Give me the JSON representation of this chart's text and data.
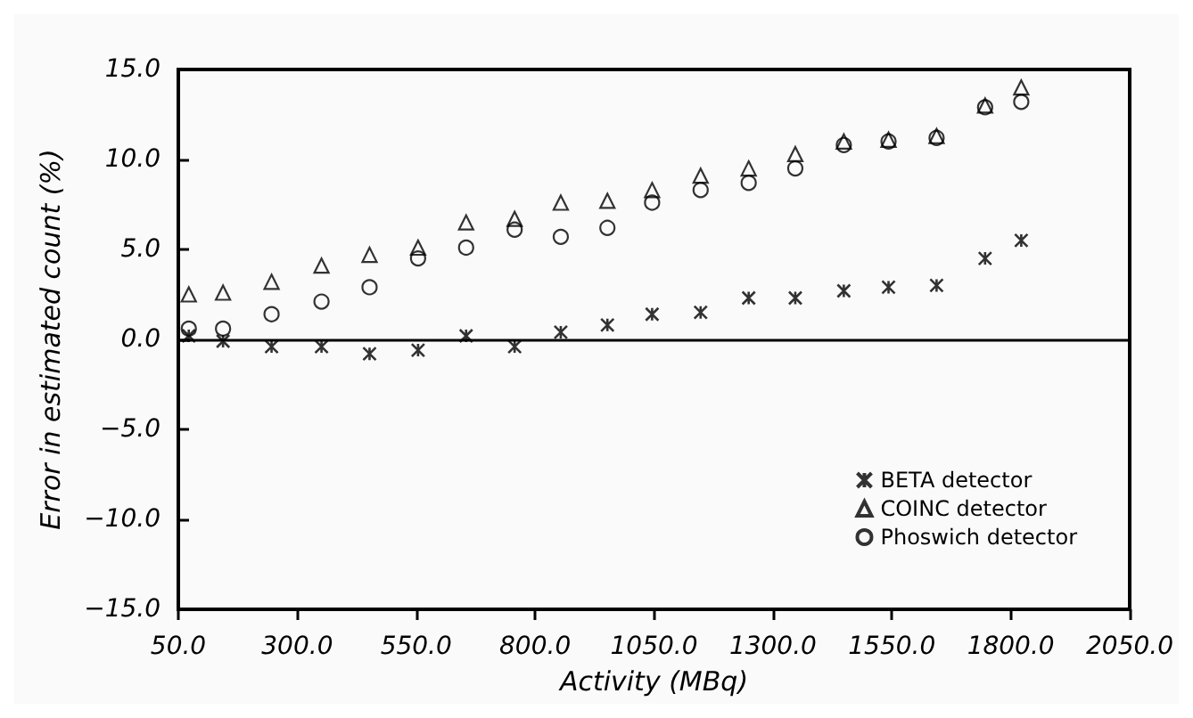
{
  "chart_data": {
    "type": "scatter",
    "xlabel": "Activity (MBq)",
    "ylabel": "Error in estimated count (%)",
    "x": [
      72,
      144,
      246,
      351,
      452,
      554,
      655,
      757,
      854,
      952,
      1046,
      1148,
      1249,
      1347,
      1449,
      1543,
      1644,
      1746,
      1822
    ],
    "series": [
      {
        "name": "BETA detector",
        "color": "#000000",
        "marker": "cross",
        "values": [
          0.2,
          -0.1,
          -0.4,
          -0.4,
          -0.8,
          -0.6,
          0.2,
          -0.4,
          0.4,
          0.8,
          1.4,
          1.5,
          2.3,
          2.3,
          2.7,
          2.9,
          3.0,
          4.5,
          5.5
        ]
      },
      {
        "name": "COINC detector",
        "color": "#000000",
        "marker": "triangle",
        "values": [
          2.5,
          2.6,
          3.2,
          4.1,
          4.7,
          5.1,
          6.5,
          6.7,
          7.6,
          7.7,
          8.3,
          9.1,
          9.5,
          10.3,
          11.0,
          11.1,
          11.3,
          13.0,
          14.0
        ]
      },
      {
        "name": "Phoswich detector",
        "color": "#000000",
        "marker": "circle",
        "values": [
          0.6,
          0.6,
          1.4,
          2.1,
          2.9,
          4.5,
          5.1,
          6.1,
          5.7,
          6.2,
          7.6,
          8.3,
          8.7,
          9.5,
          10.8,
          11.0,
          11.2,
          12.9,
          13.2
        ]
      }
    ],
    "xlim": [
      50,
      2050
    ],
    "xticks": [
      {
        "value": 50,
        "label": "50.0"
      },
      {
        "value": 300,
        "label": "300.0"
      },
      {
        "value": 550,
        "label": "550.0"
      },
      {
        "value": 800,
        "label": "800.0"
      },
      {
        "value": 1050,
        "label": "1050.0"
      },
      {
        "value": 1300,
        "label": "1300.0"
      },
      {
        "value": 1550,
        "label": "1550.0"
      },
      {
        "value": 1800,
        "label": "1800.0"
      },
      {
        "value": 2050,
        "label": "2050.0"
      }
    ],
    "ylim": [
      -15,
      15
    ],
    "yticks": [
      {
        "value": -15,
        "label": "−15.0"
      },
      {
        "value": -10,
        "label": "−10.0"
      },
      {
        "value": -5,
        "label": "−5.0"
      },
      {
        "value": 0,
        "label": "0.0"
      },
      {
        "value": 5,
        "label": "5.0"
      },
      {
        "value": 10,
        "label": "10.0"
      },
      {
        "value": 15,
        "label": "15.0"
      }
    ],
    "ref_lines": [
      {
        "axis": "y",
        "value": 0,
        "color": "#000000"
      }
    ],
    "legend": "bottom right",
    "grid": false
  }
}
